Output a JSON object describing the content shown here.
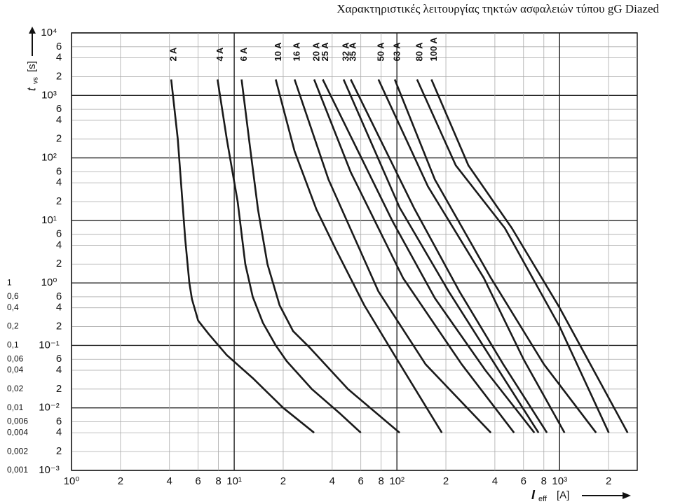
{
  "chart_data": {
    "type": "line",
    "title": "Χαρακτηριστικές λειτουργίας τηκτών ασφαλειών τύπου gG Diazed",
    "y_label": {
      "symbol": "t",
      "subscript": "vs",
      "unit": "[s]"
    },
    "x_label": {
      "symbol": "I",
      "subscript": "eff",
      "unit": "[A]"
    },
    "log_x": true,
    "log_y": true,
    "grid": true,
    "color": "#1a1a1a",
    "xlim": [
      1,
      3000
    ],
    "ylim": [
      0.001,
      10000
    ],
    "xticks": [
      {
        "value": 1,
        "label": "10⁰"
      },
      2,
      4,
      6,
      8,
      {
        "value": 10,
        "label": "10¹"
      },
      {
        "value": 20,
        "label": "2"
      },
      {
        "value": 40,
        "label": "4"
      },
      {
        "value": 60,
        "label": "6"
      },
      {
        "value": 80,
        "label": "8"
      },
      {
        "value": 100,
        "label": "10²"
      },
      {
        "value": 200,
        "label": "2"
      },
      {
        "value": 400,
        "label": "4"
      },
      {
        "value": 600,
        "label": "6"
      },
      {
        "value": 800,
        "label": "8"
      },
      {
        "value": 1000,
        "label": "10³"
      },
      {
        "value": 2000,
        "label": "2"
      }
    ],
    "yticks": [
      {
        "value": 10000,
        "label": "10⁴"
      },
      {
        "value": 6000,
        "label": "6"
      },
      {
        "value": 4000,
        "label": "4"
      },
      {
        "value": 2000,
        "label": "2"
      },
      {
        "value": 1000,
        "label": "10³"
      },
      {
        "value": 600,
        "label": "6"
      },
      {
        "value": 400,
        "label": "4"
      },
      {
        "value": 200,
        "label": "2"
      },
      {
        "value": 100,
        "label": "10²"
      },
      {
        "value": 60,
        "label": "6"
      },
      {
        "value": 40,
        "label": "4"
      },
      {
        "value": 20,
        "label": "2"
      },
      {
        "value": 10,
        "label": "10¹"
      },
      6,
      4,
      2,
      {
        "value": 1,
        "label": "10⁰"
      },
      {
        "value": 0.6,
        "label": "6"
      },
      {
        "value": 0.4,
        "label": "4"
      },
      {
        "value": 0.2,
        "label": "2"
      },
      {
        "value": 0.1,
        "label": "10⁻¹"
      },
      {
        "value": 0.06,
        "label": "6"
      },
      {
        "value": 0.04,
        "label": "4"
      },
      {
        "value": 0.02,
        "label": "2"
      },
      {
        "value": 0.01,
        "label": "10⁻²"
      },
      {
        "value": 0.006,
        "label": "6"
      },
      {
        "value": 0.004,
        "label": "4"
      },
      {
        "value": 0.002,
        "label": "2"
      },
      {
        "value": 0.001,
        "label": "10⁻³"
      }
    ],
    "left_ticks": [
      {
        "value": 1,
        "label": "1"
      },
      {
        "value": 0.6,
        "label": "0,6"
      },
      {
        "value": 0.4,
        "label": "0,4"
      },
      {
        "value": 0.2,
        "label": "0,2"
      },
      {
        "value": 0.1,
        "label": "0,1"
      },
      {
        "value": 0.06,
        "label": "0,06"
      },
      {
        "value": 0.04,
        "label": "0,04"
      },
      {
        "value": 0.02,
        "label": "0,02"
      },
      {
        "value": 0.01,
        "label": "0,01"
      },
      {
        "value": 0.006,
        "label": "0,006"
      },
      {
        "value": 0.004,
        "label": "0,004"
      },
      {
        "value": 0.002,
        "label": "0,002"
      },
      {
        "value": 0.001,
        "label": "0,001"
      }
    ],
    "series": [
      {
        "name": "2 A",
        "x": [
          4.1,
          4.5,
          5,
          5.3,
          5.5,
          6,
          7,
          9,
          13,
          20,
          31
        ],
        "values": [
          1800,
          200,
          5,
          1,
          0.55,
          0.25,
          0.15,
          0.07,
          0.03,
          0.01,
          0.004
        ]
      },
      {
        "name": "4 A",
        "x": [
          7.9,
          9,
          10.5,
          11.7,
          13,
          15,
          18,
          21,
          30,
          45,
          60
        ],
        "values": [
          1800,
          200,
          20,
          2,
          0.6,
          0.23,
          0.1,
          0.056,
          0.02,
          0.008,
          0.004
        ]
      },
      {
        "name": "6 A",
        "x": [
          11.1,
          12.5,
          14,
          16,
          19,
          23,
          29,
          50,
          104
        ],
        "values": [
          1800,
          150,
          15,
          2,
          0.44,
          0.17,
          0.093,
          0.02,
          0.004
        ]
      },
      {
        "name": "10 A",
        "x": [
          18,
          23.5,
          32,
          42,
          63,
          100,
          189
        ],
        "values": [
          1800,
          128,
          15,
          3.5,
          0.44,
          0.06,
          0.004
        ]
      },
      {
        "name": "16 A",
        "x": [
          23.5,
          38,
          77,
          150,
          378
        ],
        "values": [
          1800,
          45,
          0.73,
          0.05,
          0.004
        ]
      },
      {
        "name": "20 A",
        "x": [
          31,
          52,
          109,
          250,
          525
        ],
        "values": [
          1800,
          59,
          1.2,
          0.05,
          0.004
        ]
      },
      {
        "name": "25 A",
        "x": [
          35,
          94,
          171,
          350,
          700
        ],
        "values": [
          1800,
          9.7,
          0.57,
          0.04,
          0.004
        ]
      },
      {
        "name": "32 A",
        "x": [
          47,
          104,
          208,
          400,
          742
        ],
        "values": [
          1800,
          16,
          0.73,
          0.05,
          0.004
        ]
      },
      {
        "name": "35 A",
        "x": [
          52,
          127,
          242,
          450,
          836
        ],
        "values": [
          1800,
          16,
          0.73,
          0.05,
          0.004
        ]
      },
      {
        "name": "50 A",
        "x": [
          77,
          155,
          342,
          600,
          1072
        ],
        "values": [
          1800,
          35,
          1.2,
          0.06,
          0.004
        ]
      },
      {
        "name": "63 A",
        "x": [
          97,
          171,
          378,
          800,
          1675
        ],
        "values": [
          1800,
          45,
          1.2,
          0.05,
          0.004
        ]
      },
      {
        "name": "80 A",
        "x": [
          133,
          230,
          461,
          1000,
          2005
        ],
        "values": [
          1800,
          76,
          7.5,
          0.2,
          0.004
        ]
      },
      {
        "name": "100 A",
        "x": [
          163,
          275,
          509,
          1000,
          2620
        ],
        "values": [
          1800,
          76,
          7.5,
          0.4,
          0.004
        ]
      }
    ]
  }
}
